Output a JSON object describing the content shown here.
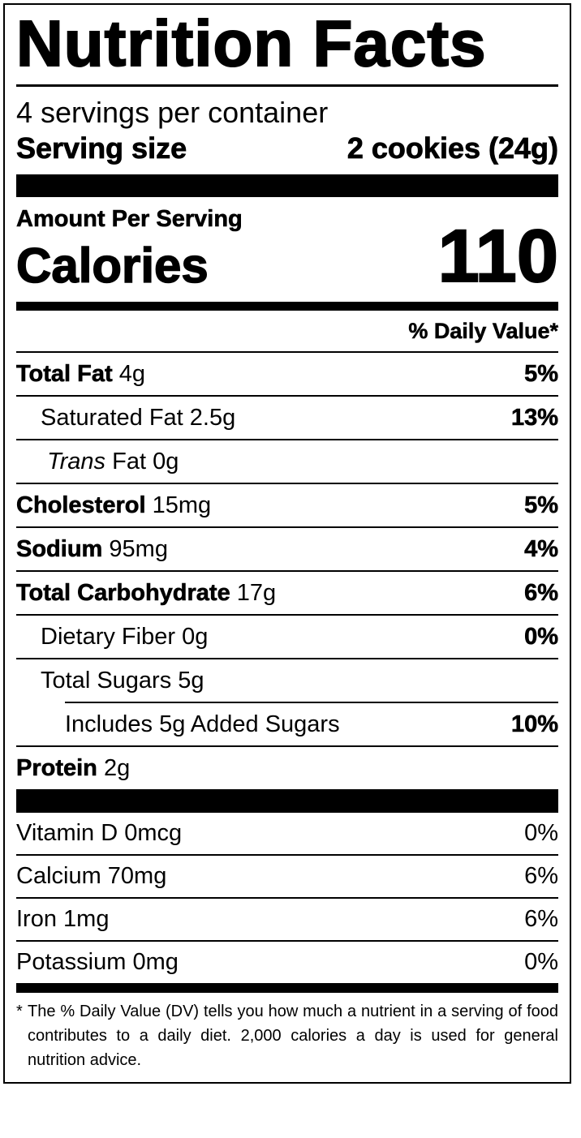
{
  "title": "Nutrition Facts",
  "servings_per_container": "4 servings per container",
  "serving_size_label": "Serving size",
  "serving_size_value": "2 cookies (24g)",
  "amount_per_serving": "Amount Per Serving",
  "calories_label": "Calories",
  "calories_value": "110",
  "daily_value_header": "% Daily Value*",
  "nutrients": [
    {
      "name": "Total Fat",
      "amount": "4g",
      "dv": "5%"
    },
    {
      "name": "Saturated Fat",
      "amount": "2.5g",
      "dv": "13%"
    },
    {
      "name": "Trans",
      "amount": "Fat 0g",
      "dv": ""
    },
    {
      "name": "Cholesterol",
      "amount": "15mg",
      "dv": "5%"
    },
    {
      "name": "Sodium",
      "amount": "95mg",
      "dv": "4%"
    },
    {
      "name": "Total Carbohydrate",
      "amount": "17g",
      "dv": "6%"
    },
    {
      "name": "Dietary Fiber",
      "amount": "0g",
      "dv": "0%"
    },
    {
      "name": "Total Sugars",
      "amount": "5g",
      "dv": ""
    },
    {
      "name": "Includes 5g Added Sugars",
      "amount": "",
      "dv": "10%"
    },
    {
      "name": "Protein",
      "amount": "2g",
      "dv": ""
    }
  ],
  "vitamins": [
    {
      "text": "Vitamin D 0mcg",
      "dv": "0%"
    },
    {
      "text": "Calcium 70mg",
      "dv": "6%"
    },
    {
      "text": "Iron 1mg",
      "dv": "6%"
    },
    {
      "text": "Potassium 0mg",
      "dv": "0%"
    }
  ],
  "footnote_star": "*",
  "footnote": "The % Daily Value (DV) tells you how much a nutrient in a serving of food contributes to a daily diet. 2,000 calories a day is used for general nutrition advice."
}
